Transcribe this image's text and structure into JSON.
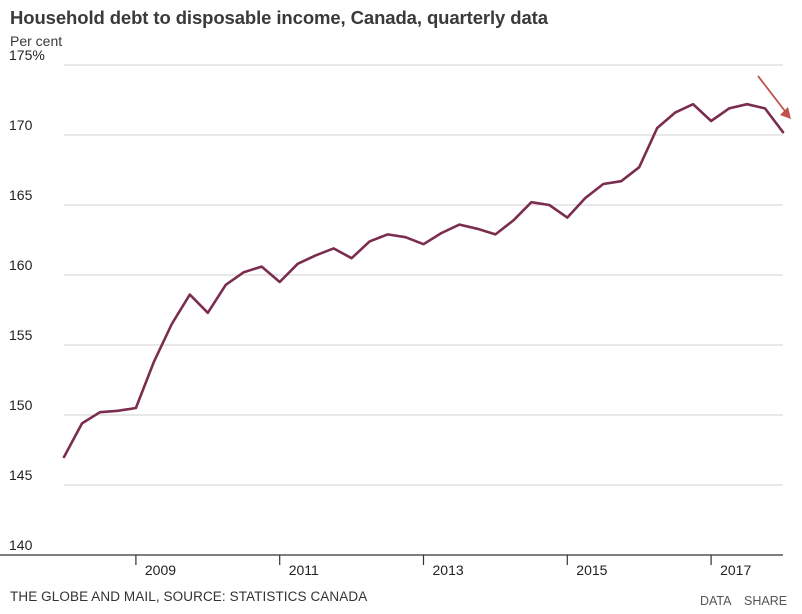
{
  "title": "Household debt to disposable income, Canada, quarterly data",
  "subtitle": "Per cent",
  "footer": {
    "source": "THE GLOBE AND MAIL, SOURCE: STATISTICS CANADA",
    "data_link": "DATA",
    "share_link": "SHARE"
  },
  "colors": {
    "line": "#7b2d4f",
    "arrow": "#c0504d",
    "grid": "#d0d0d0",
    "axis": "#333333"
  },
  "chart_data": {
    "type": "line",
    "title": "Household debt to disposable income, Canada, quarterly data",
    "ylabel": "Per cent",
    "ylim": [
      140,
      175
    ],
    "yticks": [
      140,
      145,
      150,
      155,
      160,
      165,
      170,
      175
    ],
    "ytick_labels": [
      "140",
      "145",
      "150",
      "155",
      "160",
      "165",
      "170",
      "175%"
    ],
    "xticks": [
      {
        "value": 2009,
        "label": "2009"
      },
      {
        "value": 2011,
        "label": "2011"
      },
      {
        "value": 2013,
        "label": "2013"
      },
      {
        "value": 2015,
        "label": "2015"
      },
      {
        "value": 2017,
        "label": "2017"
      }
    ],
    "xlim": [
      2008.0,
      2018.0
    ],
    "grid": true,
    "series": [
      {
        "x": [
          2008.0,
          2008.25,
          2008.5,
          2008.75,
          2009.0,
          2009.25,
          2009.5,
          2009.75,
          2010.0,
          2010.25,
          2010.5,
          2010.75,
          2011.0,
          2011.25,
          2011.5,
          2011.75,
          2012.0,
          2012.25,
          2012.5,
          2012.75,
          2013.0,
          2013.25,
          2013.5,
          2013.75,
          2014.0,
          2014.25,
          2014.5,
          2014.75,
          2015.0,
          2015.25,
          2015.5,
          2015.75,
          2016.0,
          2016.25,
          2016.5,
          2016.75,
          2017.0,
          2017.25,
          2017.5,
          2017.75,
          2018.0
        ],
        "values": [
          147.0,
          149.4,
          150.2,
          150.3,
          150.5,
          153.8,
          156.5,
          158.6,
          157.3,
          159.3,
          160.2,
          160.6,
          159.5,
          160.8,
          161.4,
          161.9,
          161.2,
          162.4,
          162.9,
          162.7,
          162.2,
          163.0,
          163.6,
          163.3,
          162.9,
          163.9,
          165.2,
          165.0,
          164.1,
          165.5,
          166.5,
          166.7,
          167.7,
          170.5,
          171.6,
          172.2,
          171.0,
          171.9,
          172.2,
          171.9,
          170.2
        ]
      }
    ],
    "annotation": {
      "type": "arrow",
      "direction": "down-right"
    }
  }
}
